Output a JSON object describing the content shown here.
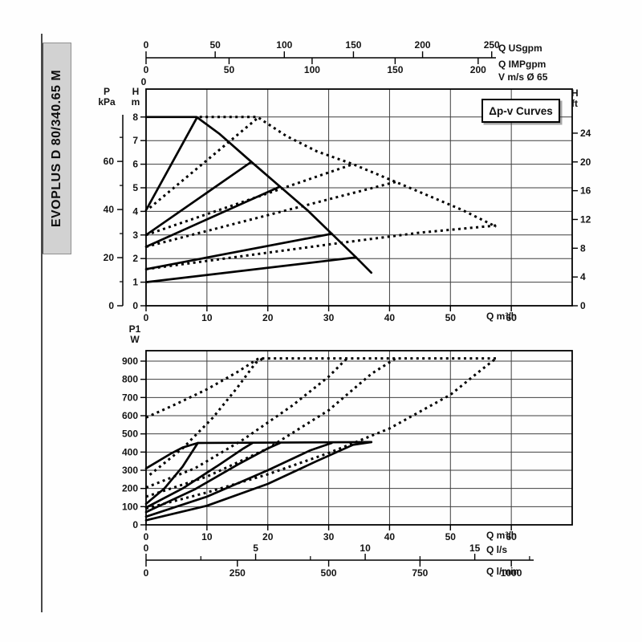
{
  "sidebar": {
    "model_label": "EVOPLUS D 80/340.65 M"
  },
  "annotation": {
    "dpv_label": "Δp-v Curves"
  },
  "axes_labels": {
    "flow_m3h": "Q m³/h",
    "flow_usgpm": "Q USgpm",
    "flow_impgpm": "Q IMPgpm",
    "velocity": "V m/s Ø 65",
    "flow_ls": "Q l/s",
    "flow_lmin": "Q l/min",
    "head_m_1": "H",
    "head_m_2": "m",
    "pressure_1": "P",
    "pressure_2": "kPa",
    "head_ft_1": "H",
    "head_ft_2": "ft",
    "power_1": "P1",
    "power_2": "W"
  },
  "chart_data": [
    {
      "id": "head-capacity-chart",
      "type": "line",
      "title": "Δp-v Curves",
      "xlabel": "Q m³/h",
      "ylabel": "H m",
      "xlim": [
        0,
        70
      ],
      "ylim": [
        0,
        9.18
      ],
      "grid": true,
      "x_ticks_m3h": [
        0,
        10,
        20,
        30,
        40,
        50,
        60
      ],
      "y_ticks_m": [
        0,
        1,
        2,
        3,
        4,
        5,
        6,
        7,
        8
      ],
      "y_ticks_kpa": [
        0,
        20,
        40,
        60
      ],
      "y_ticks_kpa_minor": [
        10,
        30,
        50,
        70
      ],
      "y_ticks_ft": [
        0,
        4,
        8,
        12,
        16,
        20,
        24
      ],
      "x_ticks_usgpm": [
        0,
        50,
        100,
        150,
        200,
        250
      ],
      "x_ticks_impgpm": [
        0,
        50,
        100,
        150,
        200
      ],
      "x_ticks_v": [
        0
      ],
      "series": [
        {
          "name": "max-curve-single",
          "style": "solid",
          "points": [
            [
              0,
              8
            ],
            [
              8.3,
              8
            ],
            [
              12,
              7.3
            ],
            [
              17.3,
              6.1
            ],
            [
              22,
              5.05
            ],
            [
              26.5,
              4.05
            ],
            [
              30.5,
              3.05
            ],
            [
              34.5,
              2.05
            ],
            [
              37,
              1.4
            ]
          ]
        },
        {
          "name": "dpv1-single",
          "style": "solid",
          "points": [
            [
              0,
              4.05
            ],
            [
              8.3,
              7.95
            ]
          ]
        },
        {
          "name": "dpv2-single",
          "style": "solid",
          "points": [
            [
              0,
              3.0
            ],
            [
              17.3,
              6.1
            ]
          ]
        },
        {
          "name": "dpv3-single",
          "style": "solid",
          "points": [
            [
              0,
              2.5
            ],
            [
              22,
              5.05
            ]
          ]
        },
        {
          "name": "dpv4-single",
          "style": "solid",
          "points": [
            [
              0,
              1.55
            ],
            [
              30.5,
              3.05
            ]
          ]
        },
        {
          "name": "dpv5-single",
          "style": "solid",
          "points": [
            [
              0,
              1.0
            ],
            [
              34.5,
              2.05
            ]
          ]
        },
        {
          "name": "max-curve-parallel",
          "style": "dotted",
          "points": [
            [
              8.8,
              8.0
            ],
            [
              18.3,
              8.0
            ],
            [
              23,
              7.2
            ],
            [
              28,
              6.55
            ],
            [
              34,
              6.0
            ],
            [
              41,
              5.25
            ],
            [
              47,
              4.6
            ],
            [
              52,
              4.05
            ],
            [
              57.5,
              3.35
            ]
          ]
        },
        {
          "name": "dpv1-parallel",
          "style": "dotted",
          "points": [
            [
              0.6,
              4.15
            ],
            [
              18.3,
              7.95
            ]
          ]
        },
        {
          "name": "dpv2-parallel",
          "style": "dotted",
          "points": [
            [
              0,
              3.0
            ],
            [
              34,
              6.0
            ]
          ]
        },
        {
          "name": "dpv3-parallel",
          "style": "dotted",
          "points": [
            [
              0,
              2.5
            ],
            [
              41,
              5.25
            ]
          ]
        },
        {
          "name": "dpv4-parallel",
          "style": "dotted",
          "points": [
            [
              0,
              1.55
            ],
            [
              30,
              2.6
            ],
            [
              45,
              3.1
            ],
            [
              57.5,
              3.4
            ]
          ]
        }
      ]
    },
    {
      "id": "power-chart",
      "type": "line",
      "xlabel": "Q m³/h",
      "ylabel": "P1 W",
      "xlim": [
        0,
        70
      ],
      "ylim": [
        0,
        957
      ],
      "grid": true,
      "x_ticks_m3h": [
        0,
        10,
        20,
        30,
        40,
        50,
        60
      ],
      "y_ticks_w": [
        0,
        100,
        200,
        300,
        400,
        500,
        600,
        700,
        800,
        900
      ],
      "x_ticks_ls": [
        0,
        5,
        10,
        15
      ],
      "x_ticks_ls_minor": [
        2.5,
        7.5,
        12.5,
        17.5
      ],
      "x_ticks_lmin": [
        0,
        250,
        500,
        750,
        1000
      ],
      "series": [
        {
          "name": "pmax-single",
          "style": "solid",
          "points": [
            [
              0,
              310
            ],
            [
              4,
              390
            ],
            [
              6,
              425
            ],
            [
              8.5,
              450
            ],
            [
              37,
              455
            ]
          ]
        },
        {
          "name": "p1-single",
          "style": "solid",
          "points": [
            [
              0,
              115
            ],
            [
              3,
              200
            ],
            [
              6,
              320
            ],
            [
              8.5,
              450
            ]
          ]
        },
        {
          "name": "p2-single",
          "style": "solid",
          "points": [
            [
              0,
              95
            ],
            [
              6,
              200
            ],
            [
              12,
              330
            ],
            [
              16,
              420
            ],
            [
              17.5,
              450
            ]
          ]
        },
        {
          "name": "p3-single",
          "style": "solid",
          "points": [
            [
              0,
              70
            ],
            [
              8,
              195
            ],
            [
              15,
              330
            ],
            [
              20,
              420
            ],
            [
              22,
              450
            ]
          ]
        },
        {
          "name": "p4-single",
          "style": "solid",
          "points": [
            [
              0,
              45
            ],
            [
              10,
              155
            ],
            [
              20,
              300
            ],
            [
              27,
              410
            ],
            [
              30.5,
              450
            ]
          ]
        },
        {
          "name": "p5-single",
          "style": "solid",
          "points": [
            [
              0,
              25
            ],
            [
              10,
              105
            ],
            [
              20,
              225
            ],
            [
              28,
              350
            ],
            [
              34,
              440
            ],
            [
              37,
              455
            ]
          ]
        },
        {
          "name": "pmax-parallel",
          "style": "dotted",
          "points": [
            [
              0,
              590
            ],
            [
              5,
              665
            ],
            [
              10,
              745
            ],
            [
              15,
              840
            ],
            [
              18.5,
              915
            ],
            [
              57.5,
              915
            ]
          ]
        },
        {
          "name": "p1-parallel",
          "style": "dotted",
          "points": [
            [
              0.6,
              275
            ],
            [
              6,
              420
            ],
            [
              11,
              590
            ],
            [
              15,
              755
            ],
            [
              18,
              890
            ],
            [
              19.2,
              915
            ]
          ]
        },
        {
          "name": "p2-parallel",
          "style": "dotted",
          "points": [
            [
              0,
              205
            ],
            [
              8,
              310
            ],
            [
              16,
              470
            ],
            [
              24,
              655
            ],
            [
              30,
              815
            ],
            [
              33,
              915
            ]
          ]
        },
        {
          "name": "p3-parallel",
          "style": "dotted",
          "points": [
            [
              0,
              155
            ],
            [
              10,
              265
            ],
            [
              20,
              420
            ],
            [
              30,
              630
            ],
            [
              37,
              830
            ],
            [
              41,
              915
            ]
          ]
        },
        {
          "name": "p4-parallel",
          "style": "dotted",
          "points": [
            [
              0,
              90
            ],
            [
              10,
              178
            ],
            [
              20,
              278
            ],
            [
              30,
              395
            ],
            [
              40,
              530
            ],
            [
              50,
              715
            ],
            [
              55,
              850
            ],
            [
              57.5,
              915
            ]
          ]
        }
      ]
    }
  ]
}
